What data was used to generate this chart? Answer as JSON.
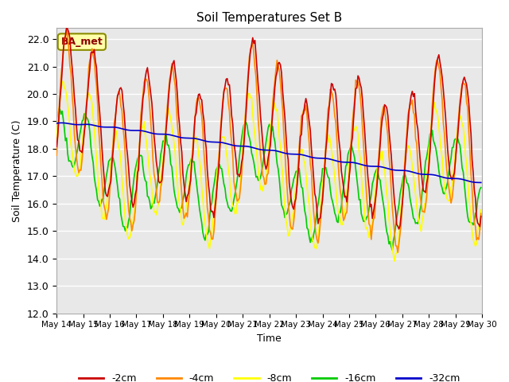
{
  "title": "Soil Temperatures Set B",
  "xlabel": "Time",
  "ylabel": "Soil Temperature (C)",
  "ylim": [
    12.0,
    22.4
  ],
  "yticks": [
    12.0,
    13.0,
    14.0,
    15.0,
    16.0,
    17.0,
    18.0,
    19.0,
    20.0,
    21.0,
    22.0
  ],
  "annotation": "BA_met",
  "bg_color": "#e8e8e8",
  "plot_bg": "#e8e8e8",
  "line_colors": [
    [
      "#cc0000",
      "-2cm"
    ],
    [
      "#ff8800",
      "-4cm"
    ],
    [
      "#ffff00",
      "-8cm"
    ],
    [
      "#00cc00",
      "-16cm"
    ],
    [
      "#0000cc",
      "-32cm"
    ]
  ]
}
